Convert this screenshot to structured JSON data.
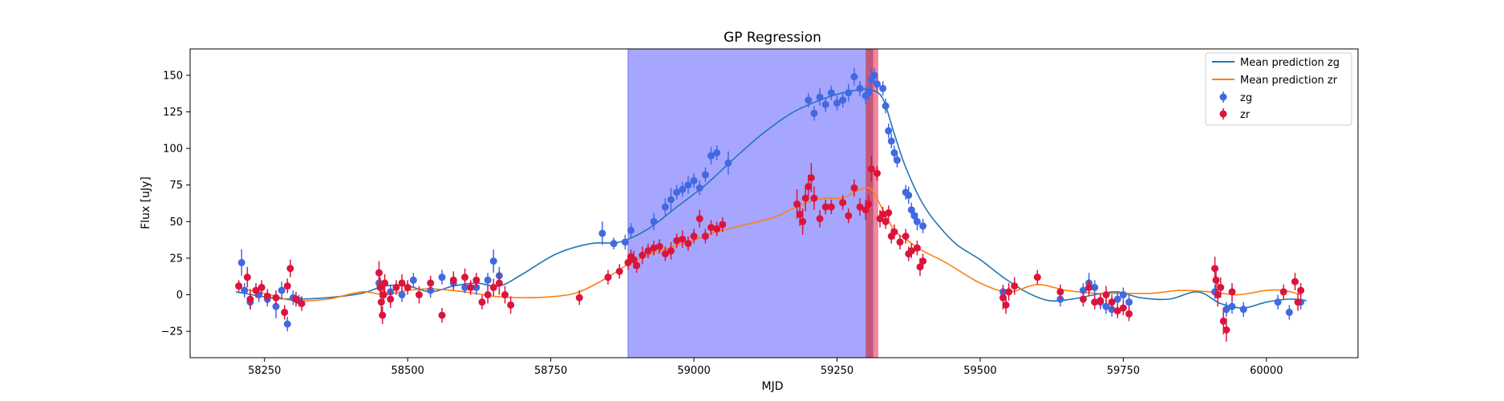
{
  "chart_data": {
    "type": "scatter",
    "title": "GP Regression",
    "xlabel": "MJD",
    "ylabel": "Flux [uJy]",
    "xlim": [
      58120,
      60160
    ],
    "ylim": [
      -43,
      168
    ],
    "xticks": [
      58250,
      58500,
      58750,
      59000,
      59250,
      59500,
      59750,
      60000
    ],
    "yticks": [
      -25,
      0,
      25,
      50,
      75,
      100,
      125,
      150
    ],
    "grid": false,
    "legend_position": "top-right",
    "colors": {
      "zg_line": "#1f77b4",
      "zr_line": "#ff7f0e",
      "zg_points": "#4169e1",
      "zr_points": "#dc143c",
      "blue_band": "#a6a6ff",
      "red_band": "#f4869d",
      "overlap_band": "#c2577e"
    },
    "shaded_regions": [
      {
        "x_start": 58885,
        "x_end": 59300,
        "color": "blue"
      },
      {
        "x_start": 59300,
        "x_end": 59322,
        "color": "red"
      }
    ],
    "series": [
      {
        "name": "Mean prediction zg",
        "kind": "line",
        "x": [
          58200,
          58260,
          58300,
          58360,
          58420,
          58460,
          58500,
          58540,
          58580,
          58620,
          58660,
          58700,
          58760,
          58820,
          58870,
          58920,
          58970,
          59020,
          59070,
          59120,
          59170,
          59220,
          59260,
          59290,
          59310,
          59330,
          59350,
          59370,
          59400,
          59430,
          59460,
          59500,
          59540,
          59580,
          59620,
          59660,
          59700,
          59740,
          59780,
          59830,
          59880,
          59920,
          59960,
          60000,
          60040,
          60070
        ],
        "y": [
          2,
          -2,
          -3,
          -2,
          1,
          6,
          6,
          2,
          6,
          8,
          6,
          14,
          28,
          35,
          36,
          45,
          60,
          75,
          93,
          110,
          124,
          133,
          138,
          140,
          140,
          134,
          110,
          87,
          62,
          46,
          34,
          24,
          12,
          2,
          -4,
          -3,
          0,
          2,
          -2,
          -3,
          2,
          -6,
          -9,
          -5,
          -3,
          -4
        ]
      },
      {
        "name": "Mean prediction zr",
        "kind": "line",
        "x": [
          58200,
          58260,
          58300,
          58360,
          58420,
          58460,
          58500,
          58540,
          58600,
          58650,
          58700,
          58760,
          58800,
          58850,
          58890,
          58940,
          58990,
          59040,
          59090,
          59140,
          59190,
          59230,
          59260,
          59290,
          59310,
          59330,
          59350,
          59370,
          59400,
          59440,
          59500,
          59550,
          59600,
          59650,
          59700,
          59750,
          59800,
          59850,
          59900,
          59950,
          60000,
          60030,
          60060
        ],
        "y": [
          5,
          0,
          -4,
          -3,
          2,
          0,
          3,
          4,
          2,
          -1,
          -2,
          -1,
          2,
          12,
          22,
          30,
          36,
          43,
          48,
          53,
          62,
          66,
          66,
          72,
          72,
          58,
          44,
          38,
          30,
          22,
          8,
          2,
          7,
          3,
          1,
          1,
          1,
          3,
          2,
          0,
          3,
          3,
          0
        ]
      },
      {
        "name": "zg",
        "kind": "errorbar",
        "x": [
          58210,
          58215,
          58225,
          58240,
          58255,
          58270,
          58280,
          58290,
          58300,
          58310,
          58450,
          58470,
          58490,
          58510,
          58540,
          58560,
          58580,
          58600,
          58620,
          58640,
          58650,
          58660,
          58840,
          58860,
          58880,
          58890,
          58930,
          58950,
          58960,
          58970,
          58980,
          58990,
          59000,
          59010,
          59020,
          59030,
          59040,
          59060,
          59200,
          59210,
          59220,
          59230,
          59240,
          59250,
          59260,
          59270,
          59280,
          59290,
          59300,
          59305,
          59310,
          59315,
          59320,
          59330,
          59335,
          59340,
          59345,
          59350,
          59355,
          59370,
          59375,
          59380,
          59385,
          59390,
          59400,
          59540,
          59640,
          59680,
          59690,
          59700,
          59710,
          59720,
          59730,
          59740,
          59750,
          59760,
          59910,
          59930,
          59940,
          59960,
          60020,
          60040,
          60060
        ],
        "y": [
          22,
          3,
          -5,
          0,
          -3,
          -8,
          3,
          -20,
          -2,
          -4,
          8,
          2,
          0,
          10,
          3,
          12,
          8,
          5,
          5,
          10,
          23,
          13,
          42,
          35,
          36,
          44,
          50,
          60,
          65,
          70,
          72,
          75,
          78,
          73,
          82,
          95,
          97,
          90,
          133,
          124,
          135,
          130,
          138,
          131,
          133,
          138,
          149,
          141,
          136,
          138,
          147,
          150,
          144,
          141,
          129,
          112,
          105,
          97,
          92,
          70,
          68,
          58,
          54,
          50,
          47,
          2,
          -3,
          3,
          8,
          5,
          -5,
          -8,
          -10,
          -3,
          0,
          -5,
          2,
          -10,
          -8,
          -10,
          -5,
          -12,
          -5
        ],
        "err": [
          9,
          5,
          5,
          5,
          5,
          8,
          6,
          5,
          5,
          4,
          5,
          5,
          5,
          5,
          5,
          5,
          5,
          4,
          5,
          5,
          8,
          6,
          8,
          4,
          5,
          5,
          6,
          6,
          8,
          5,
          5,
          6,
          5,
          5,
          5,
          6,
          5,
          8,
          5,
          5,
          6,
          5,
          5,
          5,
          5,
          6,
          6,
          5,
          6,
          5,
          8,
          5,
          5,
          5,
          5,
          5,
          5,
          5,
          5,
          5,
          6,
          5,
          5,
          6,
          5,
          5,
          5,
          5,
          7,
          5,
          5,
          5,
          5,
          5,
          5,
          5,
          5,
          5,
          5,
          5,
          5,
          5,
          5
        ]
      },
      {
        "name": "zr",
        "kind": "errorbar",
        "x": [
          58205,
          58220,
          58225,
          58235,
          58245,
          58255,
          58270,
          58285,
          58290,
          58295,
          58305,
          58315,
          58450,
          58452,
          58454,
          58456,
          58458,
          58460,
          58470,
          58480,
          58490,
          58500,
          58520,
          58540,
          58560,
          58580,
          58600,
          58610,
          58620,
          58630,
          58640,
          58650,
          58660,
          58670,
          58680,
          58800,
          58850,
          58870,
          58885,
          58890,
          58895,
          58900,
          58910,
          58920,
          58930,
          58940,
          58950,
          58960,
          58970,
          58980,
          58990,
          59000,
          59010,
          59020,
          59030,
          59040,
          59050,
          59180,
          59185,
          59190,
          59195,
          59200,
          59205,
          59210,
          59220,
          59230,
          59240,
          59260,
          59270,
          59280,
          59290,
          59300,
          59305,
          59310,
          59320,
          59325,
          59330,
          59335,
          59340,
          59345,
          59350,
          59360,
          59370,
          59375,
          59380,
          59390,
          59395,
          59400,
          59540,
          59545,
          59550,
          59560,
          59600,
          59640,
          59680,
          59690,
          59700,
          59710,
          59720,
          59730,
          59740,
          59750,
          59760,
          59910,
          59912,
          59915,
          59920,
          59925,
          59930,
          59940,
          60030,
          60050,
          60055,
          60060
        ],
        "y": [
          6,
          12,
          -3,
          3,
          5,
          -1,
          -2,
          -12,
          6,
          18,
          -3,
          -6,
          15,
          5,
          -5,
          -14,
          0,
          8,
          -3,
          5,
          8,
          5,
          0,
          8,
          -14,
          10,
          12,
          5,
          10,
          -5,
          0,
          5,
          8,
          0,
          -7,
          -2,
          12,
          16,
          22,
          26,
          24,
          20,
          27,
          30,
          32,
          33,
          28,
          30,
          37,
          38,
          35,
          40,
          52,
          40,
          46,
          45,
          48,
          62,
          55,
          50,
          66,
          74,
          80,
          66,
          52,
          60,
          60,
          63,
          54,
          73,
          60,
          58,
          62,
          86,
          83,
          52,
          55,
          50,
          56,
          40,
          43,
          36,
          40,
          28,
          30,
          32,
          19,
          23,
          -2,
          -7,
          2,
          6,
          12,
          2,
          -3,
          5,
          -5,
          -4,
          0,
          -5,
          -11,
          -9,
          -13,
          18,
          10,
          0,
          5,
          -18,
          -24,
          2,
          2,
          9,
          -5,
          3
        ],
        "err": [
          4,
          7,
          7,
          5,
          5,
          5,
          5,
          5,
          5,
          6,
          5,
          5,
          8,
          7,
          8,
          6,
          6,
          6,
          6,
          5,
          6,
          5,
          6,
          5,
          5,
          6,
          6,
          5,
          5,
          5,
          6,
          6,
          8,
          6,
          6,
          5,
          5,
          5,
          5,
          5,
          6,
          5,
          6,
          5,
          5,
          5,
          5,
          6,
          5,
          6,
          5,
          5,
          6,
          5,
          5,
          5,
          5,
          10,
          8,
          9,
          9,
          8,
          10,
          8,
          6,
          5,
          5,
          5,
          5,
          6,
          6,
          7,
          6,
          9,
          5,
          6,
          5,
          5,
          5,
          5,
          5,
          5,
          5,
          5,
          5,
          5,
          6,
          5,
          8,
          6,
          6,
          6,
          5,
          5,
          5,
          6,
          5,
          5,
          6,
          5,
          5,
          5,
          5,
          8,
          7,
          8,
          7,
          9,
          8,
          6,
          5,
          6,
          6,
          5
        ]
      }
    ]
  }
}
